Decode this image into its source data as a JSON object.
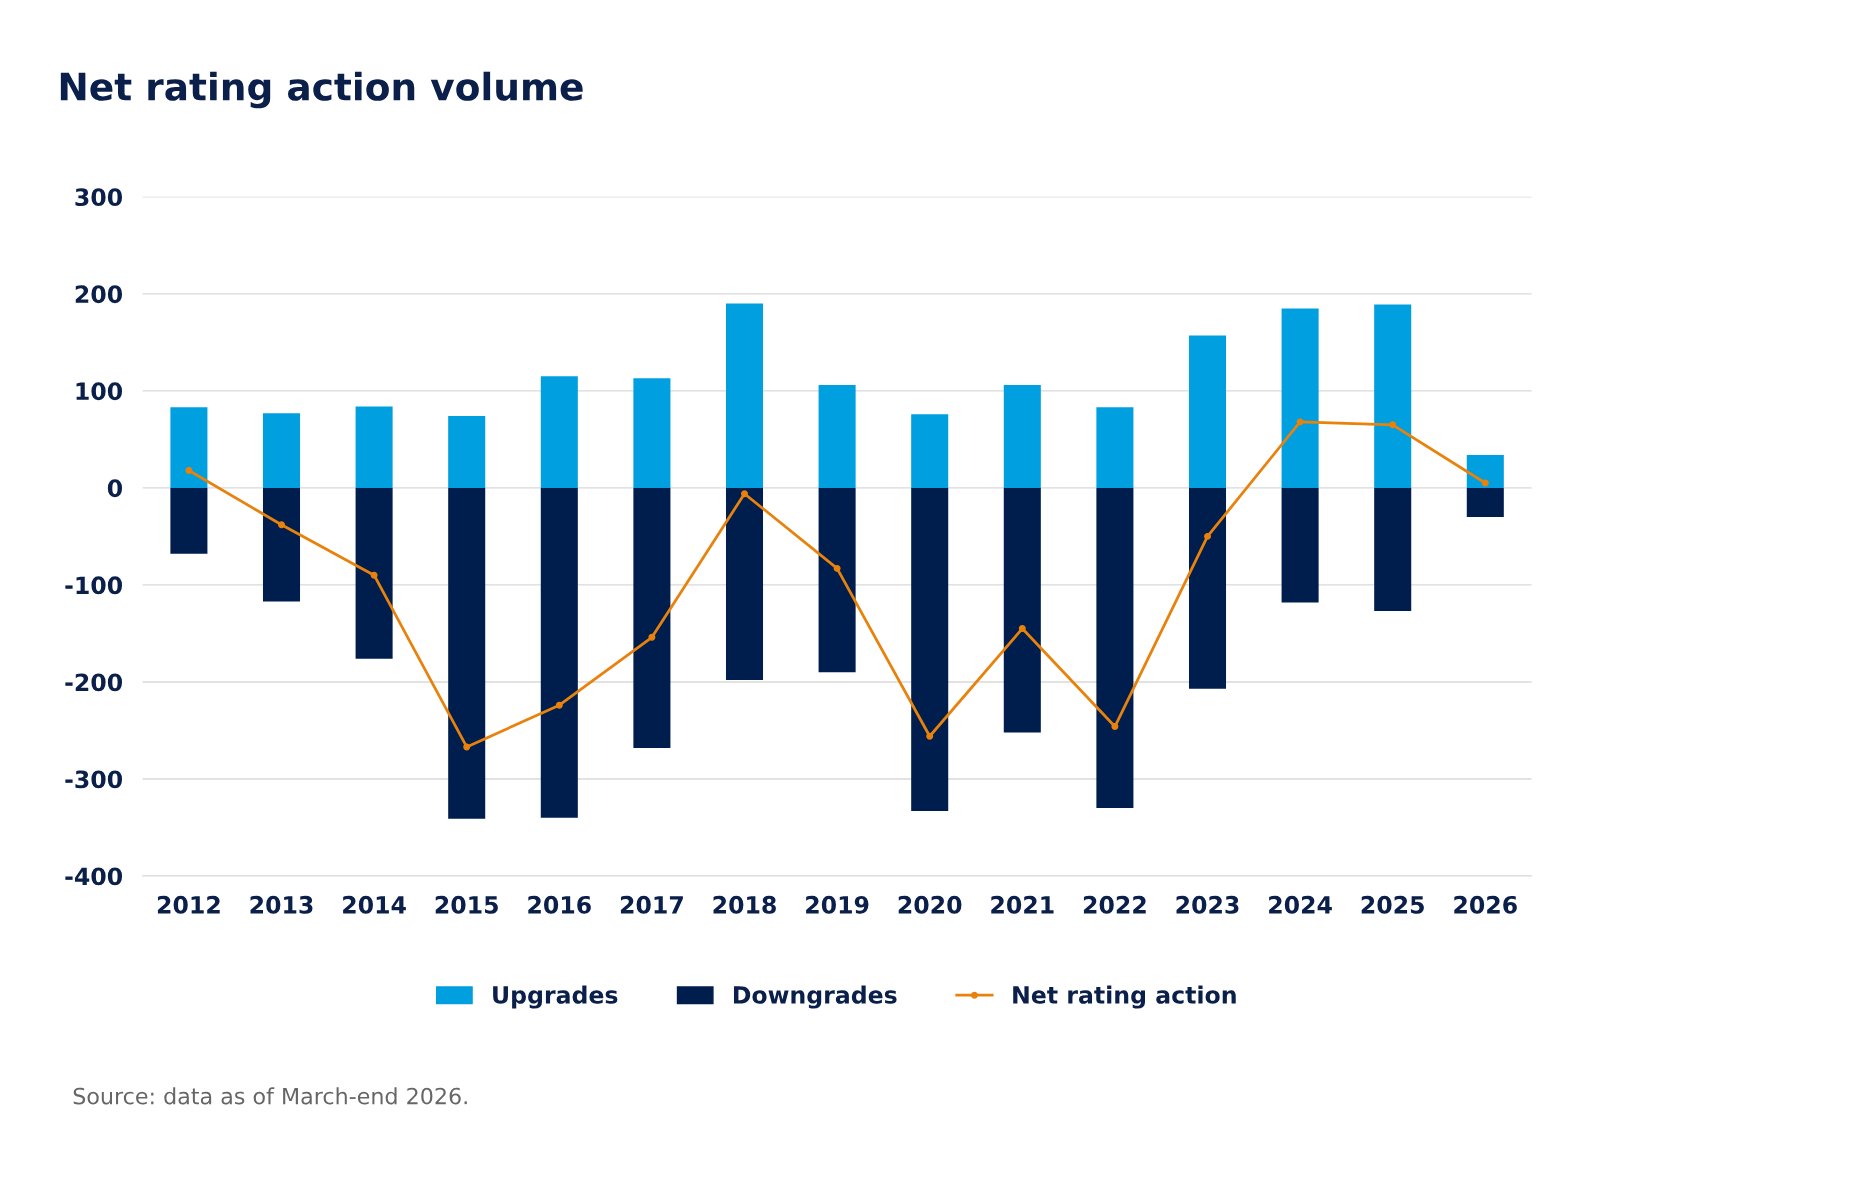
{
  "chart_data": {
    "type": "bar",
    "title": "Net rating action volume",
    "categories": [
      "2012",
      "2013",
      "2014",
      "2015",
      "2016",
      "2017",
      "2018",
      "2019",
      "2020",
      "2021",
      "2022",
      "2023",
      "2024",
      "2025",
      "2026"
    ],
    "series": [
      {
        "name": "Upgrades",
        "color": "#009fdf",
        "values": [
          83,
          77,
          84,
          74,
          115,
          113,
          190,
          106,
          76,
          106,
          83,
          157,
          185,
          189,
          34
        ]
      },
      {
        "name": "Downgrades",
        "color": "#001e4d",
        "values": [
          -68,
          -117,
          -176,
          -341,
          -340,
          -268,
          -198,
          -190,
          -333,
          -252,
          -330,
          -207,
          -118,
          -127,
          -30
        ]
      },
      {
        "name": "Net rating action",
        "type": "line",
        "color": "#e8820c",
        "marker": "circle",
        "values": [
          18,
          -38,
          -90,
          -267,
          -224,
          -154,
          -6,
          -83,
          -256,
          -145,
          -246,
          -50,
          68,
          65,
          5
        ]
      }
    ],
    "ylim": [
      -400,
      300
    ],
    "yticks": [
      -400,
      -300,
      -200,
      -100,
      0,
      100,
      200,
      300
    ],
    "stacked": true,
    "grid": "y",
    "legend": "bottom",
    "annotations": [
      "Source: data as of March-end 2026."
    ]
  }
}
